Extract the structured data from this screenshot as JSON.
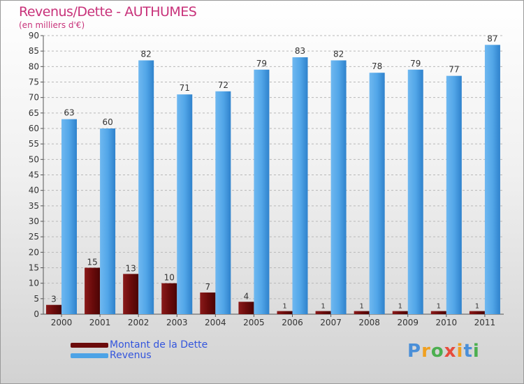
{
  "header": {
    "title": "Revenus/Dette - AUTHUMES",
    "subtitle": "(en milliers d'€)"
  },
  "chart_data": {
    "type": "bar",
    "title": "Revenus/Dette - AUTHUMES",
    "ylabel": "(en milliers d'€)",
    "xlabel": "",
    "categories": [
      "2000",
      "2001",
      "2002",
      "2003",
      "2004",
      "2005",
      "2006",
      "2007",
      "2008",
      "2009",
      "2010",
      "2011"
    ],
    "series": [
      {
        "name": "Montant de la Dette",
        "values": [
          3,
          15,
          13,
          10,
          7,
          4,
          1,
          1,
          1,
          1,
          1,
          1
        ]
      },
      {
        "name": "Revenus",
        "values": [
          63,
          60,
          82,
          71,
          72,
          79,
          83,
          82,
          78,
          79,
          77,
          87
        ]
      }
    ],
    "ylim": [
      0,
      90
    ],
    "yticks": [
      0,
      5,
      10,
      15,
      20,
      25,
      30,
      35,
      40,
      45,
      50,
      55,
      60,
      65,
      70,
      75,
      80,
      85,
      90
    ],
    "grid": "horizontal dashed",
    "legend": "bottom-left"
  },
  "legend": {
    "items": [
      {
        "label": "Montant de la Dette",
        "color": "#6b0b0b"
      },
      {
        "label": "Revenus",
        "color": "#4da3e6"
      }
    ]
  },
  "colors": {
    "title": "#c8327a",
    "dette": "#6b0b0b",
    "revenus": "#4da3e6",
    "legend_text": "#3355dd"
  },
  "brand": {
    "letters": [
      "P",
      "r",
      "o",
      "x",
      "i",
      "t",
      "i"
    ],
    "colors": [
      "#4a8fd8",
      "#f0a020",
      "#4caf50",
      "#e74c3c",
      "#f0a020",
      "#4a8fd8",
      "#4caf50"
    ]
  }
}
